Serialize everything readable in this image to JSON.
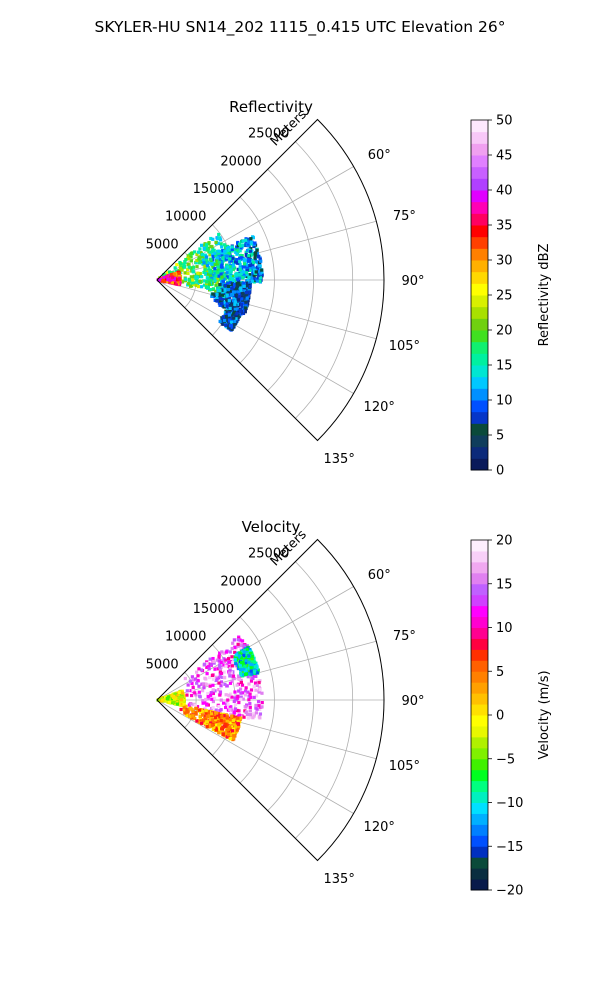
{
  "figure_title": "SKYLER-HU  SN14_202  1115_0.415 UTC Elevation 26°",
  "chart_data": [
    {
      "type": "polar-sector",
      "title": "Reflectivity",
      "radial_axis_label": "Meters",
      "radial_ticks": [
        "5000",
        "10000",
        "15000",
        "20000",
        "25000"
      ],
      "radial_tick_values": [
        5000,
        10000,
        15000,
        20000,
        25000
      ],
      "rlim": [
        0,
        29000
      ],
      "azimuth_range_deg": [
        45,
        135
      ],
      "azimuth_ticks": [
        "60°",
        "75°",
        "90°",
        "105°",
        "120°",
        "135°"
      ],
      "azimuth_tick_values": [
        60,
        75,
        90,
        105,
        120,
        135
      ],
      "grid": true,
      "colorbar": {
        "label": "Reflectivity dBZ",
        "range": [
          0,
          50
        ],
        "ticks": [
          "0",
          "5",
          "10",
          "15",
          "20",
          "25",
          "30",
          "35",
          "40",
          "45",
          "50"
        ],
        "tick_values": [
          0,
          5,
          10,
          15,
          20,
          25,
          30,
          35,
          40,
          45,
          50
        ],
        "colors": [
          "#0a1a5a",
          "#0c2a7a",
          "#0f3d5c",
          "#0a4a3a",
          "#0636c8",
          "#0050ff",
          "#0090ff",
          "#00c8ff",
          "#00e6d2",
          "#00f0a0",
          "#10f070",
          "#40e020",
          "#70d010",
          "#a8e000",
          "#d8f000",
          "#ffff00",
          "#ffd800",
          "#ffb000",
          "#ff8000",
          "#ff4000",
          "#ff0000",
          "#ff0060",
          "#ff00b4",
          "#e000ff",
          "#b040ff",
          "#c860ff",
          "#e080ff",
          "#f0a0f0",
          "#f8c8f8",
          "#fde8fd"
        ]
      },
      "echo_regions": [
        {
          "az": [
            52,
            102
          ],
          "range_m": [
            0,
            10000
          ],
          "level": 0.45
        },
        {
          "az": [
            65,
            92
          ],
          "range_m": [
            6000,
            13500
          ],
          "level": 0.4
        },
        {
          "az": [
            92,
            112
          ],
          "range_m": [
            7000,
            12000
          ],
          "level": 0.3
        },
        {
          "az": [
            110,
            124
          ],
          "range_m": [
            9500,
            11500
          ],
          "level": 0.3
        },
        {
          "az": [
            70,
            102
          ],
          "range_m": [
            0,
            3000
          ],
          "level": 0.72
        }
      ]
    },
    {
      "type": "polar-sector",
      "title": "Velocity",
      "radial_axis_label": "Meters",
      "radial_ticks": [
        "5000",
        "10000",
        "15000",
        "20000",
        "25000"
      ],
      "radial_tick_values": [
        5000,
        10000,
        15000,
        20000,
        25000
      ],
      "rlim": [
        0,
        29000
      ],
      "azimuth_range_deg": [
        45,
        135
      ],
      "azimuth_ticks": [
        "60°",
        "75°",
        "90°",
        "105°",
        "120°",
        "135°"
      ],
      "azimuth_tick_values": [
        60,
        75,
        90,
        105,
        120,
        135
      ],
      "grid": true,
      "colorbar": {
        "label": "Velocity (m/s)",
        "range": [
          -20,
          20
        ],
        "ticks": [
          "−20",
          "−15",
          "−10",
          "−5",
          "0",
          "5",
          "10",
          "15",
          "20"
        ],
        "tick_values": [
          -20,
          -15,
          -10,
          -5,
          0,
          5,
          10,
          15,
          20
        ],
        "colors": [
          "#081a4a",
          "#0a2e40",
          "#0a4a3a",
          "#0030c0",
          "#0050ff",
          "#0080ff",
          "#00b0ff",
          "#00e0ff",
          "#00f0c0",
          "#00ff80",
          "#00ff20",
          "#40f000",
          "#80f000",
          "#b0f000",
          "#e8f800",
          "#ffff00",
          "#ffe000",
          "#ffc000",
          "#ffa000",
          "#ff8000",
          "#ff6000",
          "#ff3000",
          "#ff0040",
          "#ff0090",
          "#ff00d0",
          "#ff00ff",
          "#d040ff",
          "#c060ff",
          "#e080f0",
          "#f0a8f0",
          "#f8d0f8",
          "#fdeefd"
        ]
      },
      "echo_regions": [
        {
          "az": [
            52,
            102
          ],
          "range_m": [
            3000,
            13500
          ],
          "level": 0.85
        },
        {
          "az": [
            70,
            102
          ],
          "range_m": [
            0,
            3500
          ],
          "level": 0.45
        },
        {
          "az": [
            102,
            118
          ],
          "range_m": [
            3000,
            11000
          ],
          "level": 0.6
        },
        {
          "az": [
            60,
            75
          ],
          "range_m": [
            11000,
            13500
          ],
          "level": 0.25
        }
      ]
    }
  ]
}
